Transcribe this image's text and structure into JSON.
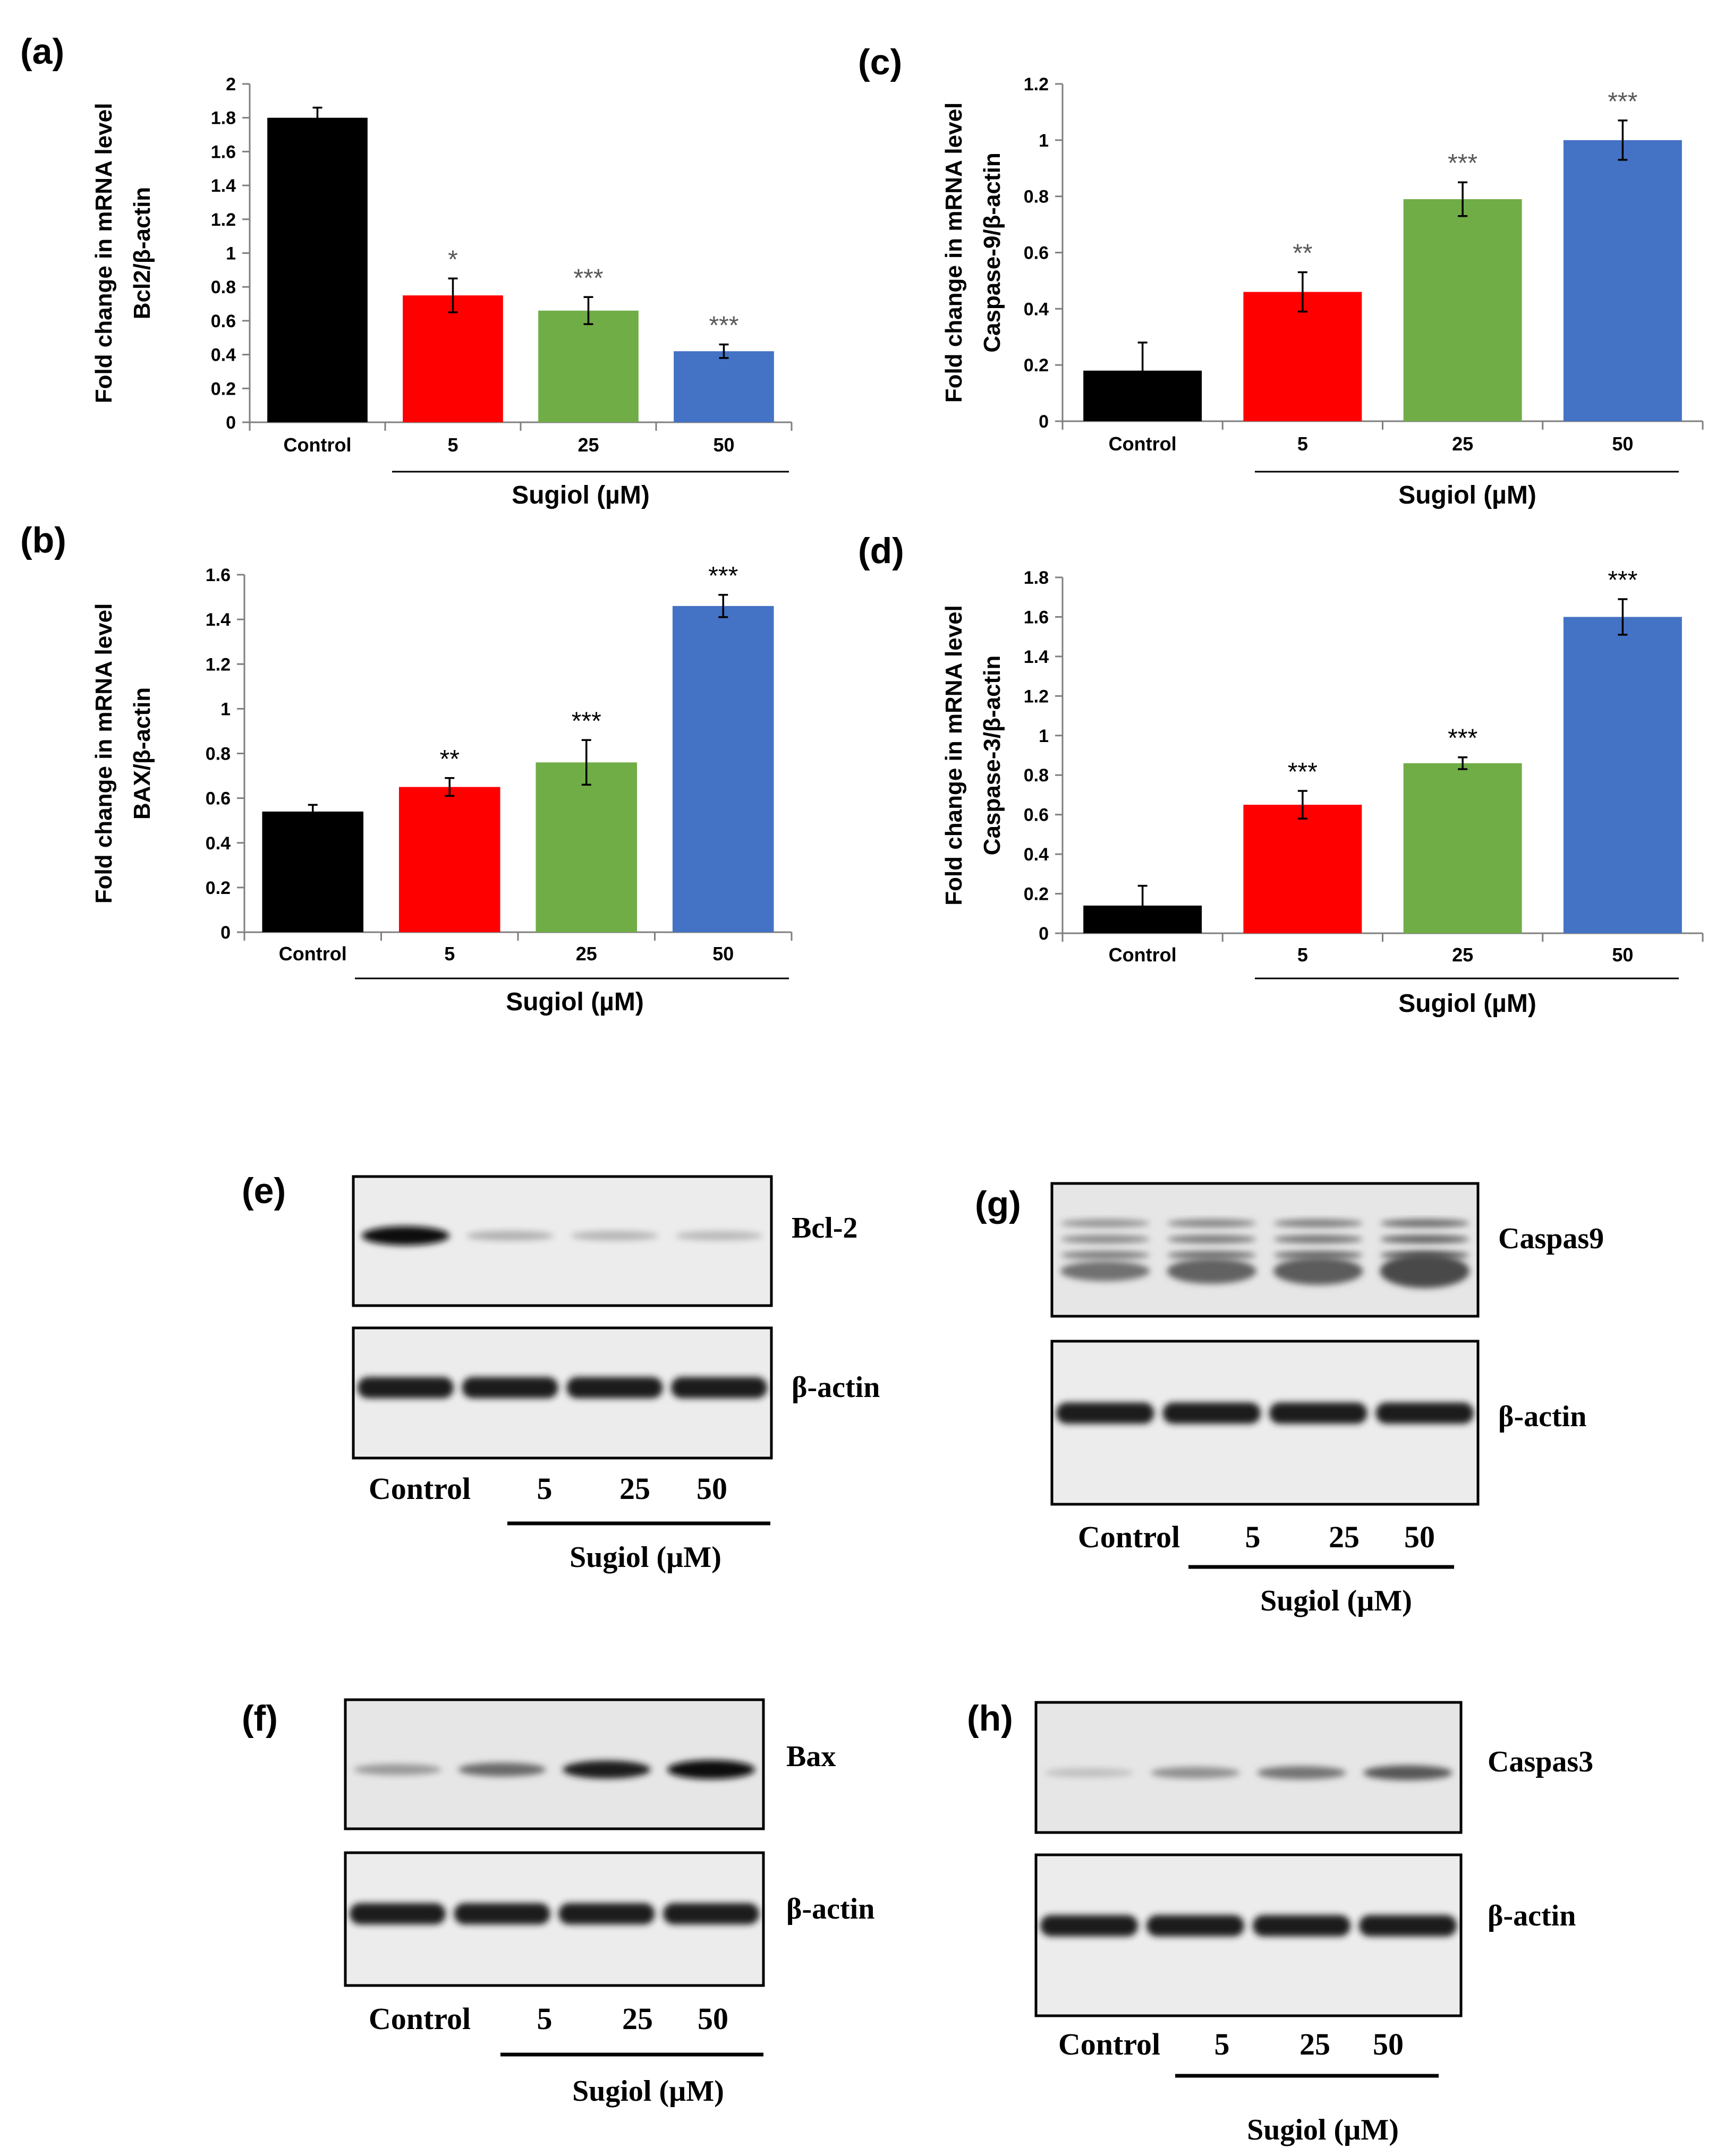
{
  "chart_data": [
    {
      "id": "a",
      "panel": "(a)",
      "type": "bar",
      "categories": [
        "Control",
        "5",
        "25",
        "50"
      ],
      "values": [
        1.8,
        0.75,
        0.66,
        0.42
      ],
      "errors": [
        0.06,
        0.1,
        0.08,
        0.04
      ],
      "stars": [
        "",
        "*",
        "***",
        "***"
      ],
      "colors": [
        "#000000",
        "#ff0000",
        "#70ad47",
        "#4472c4"
      ],
      "ylabel": [
        "Fold change in mRNA level",
        "Bcl2/β-actin"
      ],
      "xlabel": "Sugiol (µM)",
      "ylim": [
        0,
        2
      ],
      "yticks": [
        0,
        0.2,
        0.4,
        0.6,
        0.8,
        1,
        1.2,
        1.4,
        1.6,
        1.8,
        2
      ],
      "star_color": "#595959"
    },
    {
      "id": "b",
      "panel": "(b)",
      "type": "bar",
      "categories": [
        "Control",
        "5",
        "25",
        "50"
      ],
      "values": [
        0.54,
        0.65,
        0.76,
        1.46
      ],
      "errors": [
        0.03,
        0.04,
        0.1,
        0.05
      ],
      "stars": [
        "",
        "**",
        "***",
        "***"
      ],
      "colors": [
        "#000000",
        "#ff0000",
        "#70ad47",
        "#4472c4"
      ],
      "ylabel": [
        "Fold change in mRNA level",
        "BAX/β-actin"
      ],
      "xlabel": "Sugiol (µM)",
      "ylim": [
        0,
        1.6
      ],
      "yticks": [
        0,
        0.2,
        0.4,
        0.6,
        0.8,
        1,
        1.2,
        1.4,
        1.6
      ],
      "star_color": "#000000"
    },
    {
      "id": "c",
      "panel": "(c)",
      "type": "bar",
      "categories": [
        "Control",
        "5",
        "25",
        "50"
      ],
      "values": [
        0.18,
        0.46,
        0.79,
        1.0
      ],
      "errors": [
        0.1,
        0.07,
        0.06,
        0.07
      ],
      "stars": [
        "",
        "**",
        "***",
        "***"
      ],
      "colors": [
        "#000000",
        "#ff0000",
        "#70ad47",
        "#4472c4"
      ],
      "ylabel": [
        "Fold change in mRNA level",
        "Caspase-9/β-actin"
      ],
      "xlabel": "Sugiol (µM)",
      "ylim": [
        0,
        1.2
      ],
      "yticks": [
        0,
        0.2,
        0.4,
        0.6,
        0.8,
        1,
        1.2
      ],
      "star_color": "#595959"
    },
    {
      "id": "d",
      "panel": "(d)",
      "type": "bar",
      "categories": [
        "Control",
        "5",
        "25",
        "50"
      ],
      "values": [
        0.14,
        0.65,
        0.86,
        1.6
      ],
      "errors": [
        0.1,
        0.07,
        0.03,
        0.09
      ],
      "stars": [
        "",
        "***",
        "***",
        "***"
      ],
      "colors": [
        "#000000",
        "#ff0000",
        "#70ad47",
        "#4472c4"
      ],
      "ylabel": [
        "Fold change in mRNA level",
        "Caspase-3/β-actin"
      ],
      "xlabel": "Sugiol (µM)",
      "ylim": [
        0,
        1.8
      ],
      "yticks": [
        0,
        0.2,
        0.4,
        0.6,
        0.8,
        1,
        1.2,
        1.4,
        1.6,
        1.8
      ],
      "star_color": "#000000"
    }
  ],
  "blots": [
    {
      "id": "e",
      "panel": "(e)",
      "target": "Bcl-2",
      "loading": "β-actin",
      "lanes": [
        "Control",
        "5",
        "25",
        "50"
      ],
      "xlabel": "Sugiol (µM)",
      "band_intensity": [
        1.0,
        0.12,
        0.1,
        0.08
      ]
    },
    {
      "id": "f",
      "panel": "(f)",
      "target": "Bax",
      "loading": "β-actin",
      "lanes": [
        "Control",
        "5",
        "25",
        "50"
      ],
      "xlabel": "Sugiol (µM)",
      "band_intensity": [
        0.25,
        0.5,
        0.9,
        1.0
      ]
    },
    {
      "id": "g",
      "panel": "(g)",
      "target": "Caspas9",
      "loading": "β-actin",
      "lanes": [
        "Control",
        "5",
        "25",
        "50"
      ],
      "xlabel": "Sugiol (µM)",
      "band_intensity": [
        0.35,
        0.6,
        0.7,
        1.0
      ]
    },
    {
      "id": "h",
      "panel": "(h)",
      "target": "Caspas3",
      "loading": "β-actin",
      "lanes": [
        "Control",
        "5",
        "25",
        "50"
      ],
      "xlabel": "Sugiol (µM)",
      "band_intensity": [
        0.05,
        0.3,
        0.45,
        0.6
      ]
    }
  ]
}
